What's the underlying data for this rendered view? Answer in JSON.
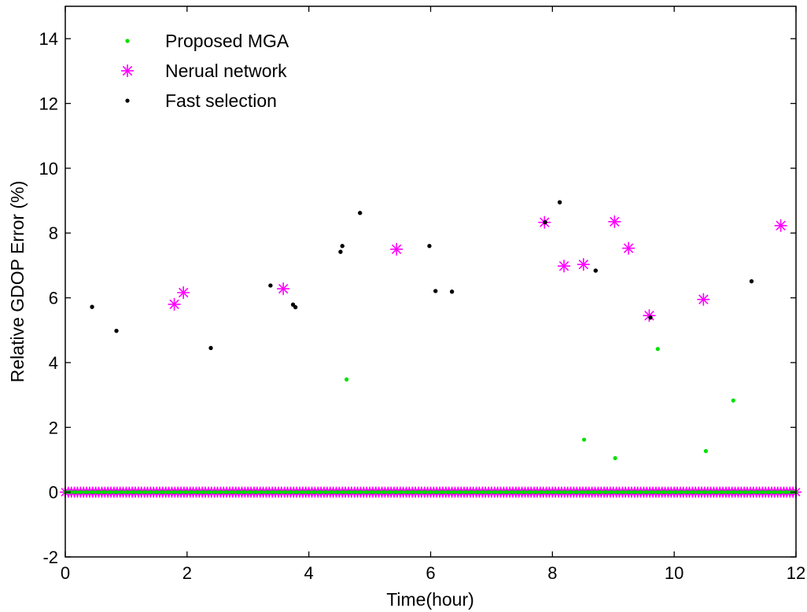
{
  "chart_data": {
    "type": "scatter",
    "title": "",
    "xlabel": "Time(hour)",
    "ylabel": "Relative GDOP Error (%)",
    "xlim": [
      0,
      12
    ],
    "ylim": [
      -2,
      15
    ],
    "x_ticks": [
      0,
      2,
      4,
      6,
      8,
      10,
      12
    ],
    "y_ticks": [
      -2,
      0,
      2,
      4,
      6,
      8,
      10,
      12,
      14
    ],
    "grid": false,
    "legend_position": "top-left",
    "baseline": {
      "y": 0,
      "x_start": 0,
      "x_end": 12,
      "note_series": [
        "Nerual network",
        "Fast selection",
        "Proposed MGA"
      ]
    },
    "series": [
      {
        "name": "Proposed MGA",
        "marker": "dot",
        "color": "#00e000",
        "points": [
          [
            4.62,
            3.48
          ],
          [
            8.52,
            1.62
          ],
          [
            9.03,
            1.05
          ],
          [
            9.73,
            4.42
          ],
          [
            10.52,
            1.27
          ],
          [
            10.97,
            2.83
          ]
        ]
      },
      {
        "name": "Nerual network",
        "marker": "asterisk",
        "color": "#ff00ff",
        "points": [
          [
            1.79,
            5.8
          ],
          [
            1.94,
            6.16
          ],
          [
            3.58,
            6.28
          ],
          [
            5.44,
            7.5
          ],
          [
            7.87,
            8.33
          ],
          [
            8.19,
            6.98
          ],
          [
            8.51,
            7.03
          ],
          [
            9.02,
            8.35
          ],
          [
            9.25,
            7.53
          ],
          [
            9.59,
            5.45
          ],
          [
            10.48,
            5.95
          ],
          [
            11.75,
            8.23
          ]
        ]
      },
      {
        "name": "Fast selection",
        "marker": "dot",
        "color": "#000000",
        "points": [
          [
            0.44,
            5.72
          ],
          [
            0.84,
            4.98
          ],
          [
            2.39,
            4.45
          ],
          [
            3.37,
            6.38
          ],
          [
            3.74,
            5.79
          ],
          [
            3.78,
            5.71
          ],
          [
            4.52,
            7.42
          ],
          [
            4.55,
            7.6
          ],
          [
            4.84,
            8.62
          ],
          [
            5.98,
            7.6
          ],
          [
            6.08,
            6.21
          ],
          [
            6.35,
            6.19
          ],
          [
            7.88,
            8.33
          ],
          [
            8.12,
            8.95
          ],
          [
            8.71,
            6.84
          ],
          [
            9.61,
            5.39
          ],
          [
            11.27,
            6.51
          ]
        ]
      }
    ]
  }
}
